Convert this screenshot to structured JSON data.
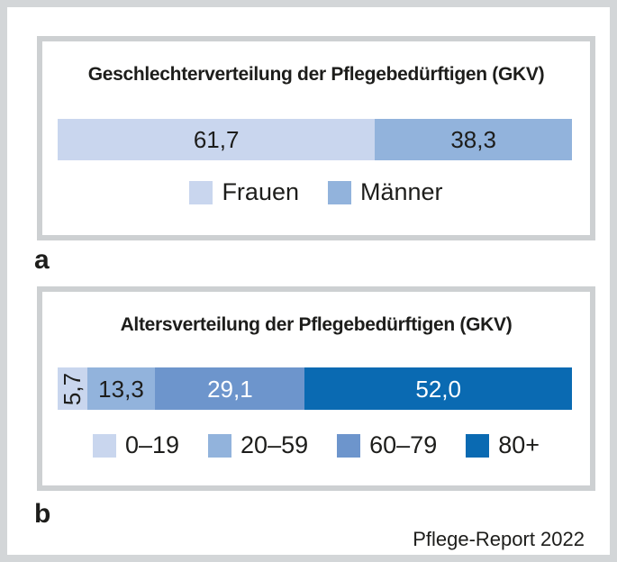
{
  "source_label": "Pflege-Report 2022",
  "chart_data": [
    {
      "type": "bar",
      "stacked": true,
      "orientation": "horizontal",
      "panel_label": "a",
      "title": "Geschlechterverteilung der Pflegebedürftigen (GKV)",
      "xlim": [
        0,
        100
      ],
      "values_unit": "percent",
      "legend_position": "bottom",
      "grid": false,
      "series": [
        {
          "name": "Frauen",
          "value": 61.7,
          "label": "61,7",
          "color": "#c9d6ee",
          "label_color": "#1d1d1b",
          "label_rotated": false
        },
        {
          "name": "Männer",
          "value": 38.3,
          "label": "38,3",
          "color": "#92b3dc",
          "label_color": "#1d1d1b",
          "label_rotated": false
        }
      ]
    },
    {
      "type": "bar",
      "stacked": true,
      "orientation": "horizontal",
      "panel_label": "b",
      "title": "Altersverteilung der Pflegebedürftigen (GKV)",
      "xlim": [
        0,
        100
      ],
      "values_unit": "percent",
      "legend_position": "bottom",
      "grid": false,
      "series": [
        {
          "name": "0–19",
          "value": 5.7,
          "label": "5,7",
          "color": "#c9d6ee",
          "label_color": "#1d1d1b",
          "label_rotated": true
        },
        {
          "name": "20–59",
          "value": 13.3,
          "label": "13,3",
          "color": "#92b3dc",
          "label_color": "#1d1d1b",
          "label_rotated": false
        },
        {
          "name": "60–79",
          "value": 29.1,
          "label": "29,1",
          "color": "#6d95cc",
          "label_color": "#ffffff",
          "label_rotated": false
        },
        {
          "name": "80+",
          "value": 52.0,
          "label": "52,0",
          "color": "#0a6ab2",
          "label_color": "#ffffff",
          "label_rotated": false
        }
      ]
    }
  ],
  "colors": {
    "frame_border": "#d3d6d8",
    "panel_border": "#cdd0d2",
    "text": "#1d1d1b"
  }
}
